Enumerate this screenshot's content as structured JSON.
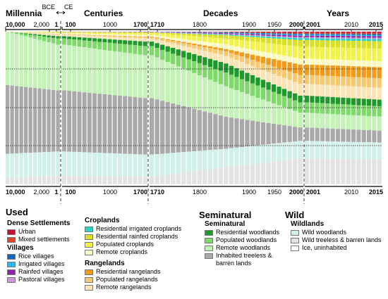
{
  "chart_data": {
    "type": "area",
    "era_labels": {
      "millennia": "Millennia",
      "centuries": "Centuries",
      "decades": "Decades",
      "years": "Years",
      "bce": "BCE",
      "ce": "CE"
    },
    "panels": [
      {
        "name": "millennia",
        "ticks": [
          "10,000",
          "2,000",
          "1"
        ],
        "start": "10,000",
        "end": "1"
      },
      {
        "name": "centuries",
        "ticks": [
          "100",
          "1000",
          "1700"
        ],
        "start": "100",
        "end": "1700"
      },
      {
        "name": "decades",
        "ticks": [
          "1710",
          "1800",
          "1900",
          "1950",
          "2000"
        ],
        "start": "1710",
        "end": "2000"
      },
      {
        "name": "years",
        "ticks": [
          "2001",
          "2010",
          "2015"
        ],
        "start": "2001",
        "end": "2015"
      }
    ],
    "categories_order": [
      "Urban",
      "Mixed settlements",
      "Rice villages",
      "Irrigated villages",
      "Rainfed villages",
      "Pastoral villages",
      "Residential irrigated croplands",
      "Residential rainfed croplands",
      "Populated croplands",
      "Remote croplands",
      "Residential rangelands",
      "Populated rangelands",
      "Remote rangelands",
      "Residential woodlands",
      "Populated woodlands",
      "Remote woodlands",
      "Inhabited treeless & barren lands",
      "Wild woodlands",
      "Wild treeless & barren lands",
      "Ice, uninhabited"
    ],
    "colors": {
      "Urban": "#c8102e",
      "Mixed settlements": "#e0452a",
      "Rice villages": "#1565c0",
      "Irrigated villages": "#29b6f6",
      "Rainfed villages": "#8e24aa",
      "Pastoral villages": "#ce93d8",
      "Residential irrigated croplands": "#26d6c6",
      "Residential rainfed croplands": "#d9e021",
      "Populated croplands": "#f2f24a",
      "Remote croplands": "#fafac0",
      "Residential rangelands": "#f29a1a",
      "Populated rangelands": "#f6c870",
      "Remote rangelands": "#fbe3b4",
      "Residential woodlands": "#1f9a2a",
      "Populated woodlands": "#7fd96a",
      "Remote woodlands": "#c2f2b4",
      "Inhabited treeless & barren lands": "#a9a9a9",
      "Wild woodlands": "#d2f0ea",
      "Wild treeless & barren lands": "#e3e3e3",
      "Ice, uninhabited": "#ffffff"
    },
    "key_points": [
      {
        "t": "10,000",
        "values": [
          0,
          0,
          0,
          0,
          0,
          0,
          0,
          0,
          0,
          0,
          0,
          0,
          0,
          0,
          0,
          35,
          45,
          16,
          4,
          0
        ]
      },
      {
        "t": "1",
        "values": [
          0,
          0,
          0,
          0,
          0.1,
          0.1,
          0,
          0.3,
          0.5,
          0.5,
          0,
          0.5,
          1,
          1.5,
          4,
          30,
          40,
          16,
          5.5,
          0
        ]
      },
      {
        "t": "1700",
        "values": [
          0,
          0,
          0,
          0,
          0.2,
          0.2,
          0,
          0.6,
          1.2,
          1,
          0.3,
          1,
          2,
          3,
          6,
          28,
          37,
          14.5,
          5,
          0
        ]
      },
      {
        "t": "1900",
        "values": [
          0.2,
          0.2,
          0.3,
          0.3,
          0.5,
          0.4,
          0.5,
          2,
          4,
          3,
          1.5,
          3,
          5,
          6,
          9,
          20,
          21,
          12,
          11.3,
          0
        ]
      },
      {
        "t": "2000",
        "values": [
          0.8,
          0.7,
          0.6,
          0.6,
          1,
          0.7,
          1.3,
          4.5,
          8,
          4,
          7,
          6,
          8,
          4.5,
          7,
          10,
          9,
          12,
          17.3,
          0
        ]
      },
      {
        "t": "2015",
        "values": [
          0.9,
          0.8,
          0.7,
          0.7,
          1.1,
          0.8,
          1.5,
          5,
          8.5,
          4,
          7.5,
          6.5,
          8,
          4.5,
          7,
          9.5,
          8,
          11.5,
          16.8,
          0
        ]
      }
    ],
    "ylim": [
      0,
      100
    ],
    "grid": "dotted horizontal at selected levels"
  },
  "legend": {
    "used_title": "Used",
    "seminatural_title": "Seminatural",
    "wild_title": "Wild",
    "groups": {
      "dense": {
        "title": "Dense Settlements",
        "items": [
          "Urban",
          "Mixed settlements"
        ]
      },
      "villages": {
        "title": "Villages",
        "items": [
          "Rice villages",
          "Irrigated villages",
          "Rainfed villages",
          "Pastoral villages"
        ]
      },
      "croplands": {
        "title": "Croplands",
        "items": [
          "Residential irrigated croplands",
          "Residential rainfed croplands",
          "Populated croplands",
          "Remote croplands"
        ]
      },
      "rangelands": {
        "title": "Rangelands",
        "items": [
          "Residential rangelands",
          "Populated rangelands",
          "Remote rangelands"
        ]
      },
      "seminatural": {
        "title": "Seminatural",
        "items": [
          "Residential woodlands",
          "Populated woodlands",
          "Remote woodlands",
          "Inhabited treeless & barren lands"
        ]
      },
      "wildlands": {
        "title": "Wildlands",
        "items": [
          "Wild woodlands",
          "Wild treeless & barren lands",
          "Ice, uninhabited"
        ]
      }
    },
    "label_lines": {
      "Residential rainfed croplands": [
        "Residential rainfed croplands"
      ],
      "Inhabited treeless & barren lands": [
        "Inhabited treeless &",
        "barren lands"
      ]
    }
  }
}
